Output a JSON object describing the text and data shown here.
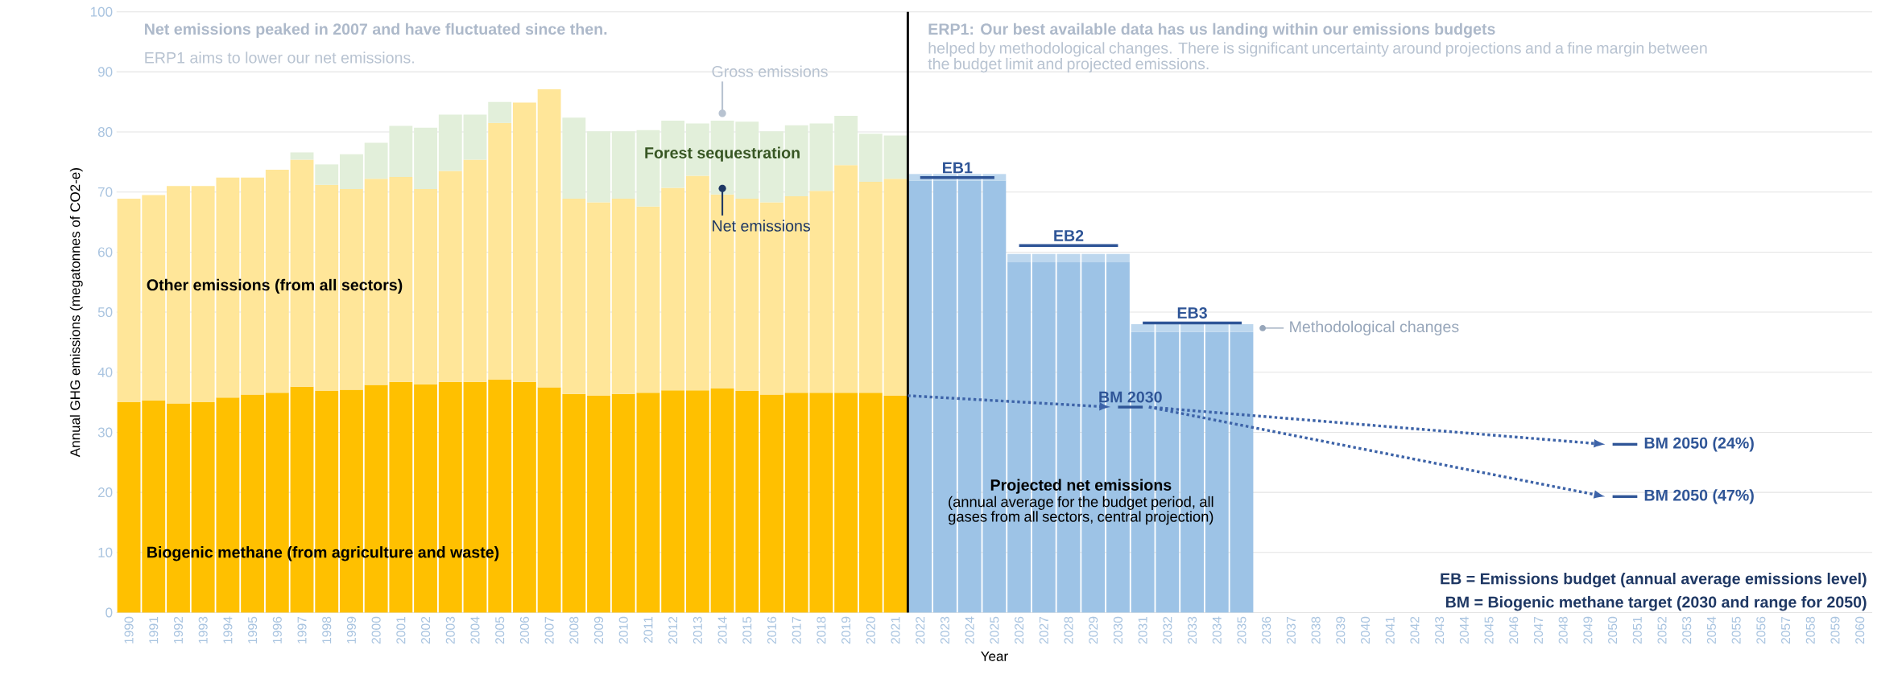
{
  "chart_data": {
    "type": "bar",
    "stacked": true,
    "grid": "y",
    "xlabel": "Year",
    "ylabel": "Annual GHG emissions (megatonnes of CO2-e)",
    "xlim": [
      1989.5,
      2060.5
    ],
    "ylim": [
      0,
      100
    ],
    "xticks": [
      1990,
      1991,
      1992,
      1993,
      1994,
      1995,
      1996,
      1997,
      1998,
      1999,
      2000,
      2001,
      2002,
      2003,
      2004,
      2005,
      2006,
      2007,
      2008,
      2009,
      2010,
      2011,
      2012,
      2013,
      2014,
      2015,
      2016,
      2017,
      2018,
      2019,
      2020,
      2021,
      2022,
      2023,
      2024,
      2025,
      2026,
      2027,
      2028,
      2029,
      2030,
      2031,
      2032,
      2033,
      2034,
      2035,
      2036,
      2037,
      2038,
      2039,
      2040,
      2041,
      2042,
      2043,
      2044,
      2045,
      2046,
      2047,
      2048,
      2049,
      2050,
      2051,
      2052,
      2053,
      2054,
      2055,
      2056,
      2057,
      2058,
      2059,
      2060
    ],
    "yticks": [
      0,
      10,
      20,
      30,
      40,
      50,
      60,
      70,
      80,
      90,
      100
    ],
    "x": [
      1990,
      1991,
      1992,
      1993,
      1994,
      1995,
      1996,
      1997,
      1998,
      1999,
      2000,
      2001,
      2002,
      2003,
      2004,
      2005,
      2006,
      2007,
      2008,
      2009,
      2010,
      2011,
      2012,
      2013,
      2014,
      2015,
      2016,
      2017,
      2018,
      2019,
      2020,
      2021,
      2022,
      2023,
      2024,
      2025,
      2026,
      2027,
      2028,
      2029,
      2030,
      2031,
      2032,
      2033,
      2034,
      2035
    ],
    "series": [
      {
        "name": "Biogenic methane (from agriculture and waste)",
        "color": "#ffc000",
        "values": [
          35.0,
          35.3,
          34.8,
          35.0,
          35.8,
          36.3,
          36.6,
          37.6,
          36.9,
          37.1,
          37.9,
          38.4,
          38.0,
          38.4,
          38.4,
          38.8,
          38.4,
          37.5,
          36.4,
          36.1,
          36.4,
          36.6,
          37.0,
          37.0,
          37.3,
          36.9,
          36.3,
          36.6,
          36.6,
          36.6,
          36.6,
          36.1,
          null,
          null,
          null,
          null,
          null,
          null,
          null,
          null,
          null,
          null,
          null,
          null,
          null,
          null
        ]
      },
      {
        "name": "Other emissions (from all sectors)",
        "color": "#ffe699",
        "values": [
          33.9,
          34.2,
          36.2,
          36.0,
          36.6,
          36.1,
          37.1,
          37.8,
          34.3,
          33.4,
          34.3,
          34.1,
          32.5,
          35.1,
          37.0,
          42.7,
          46.5,
          49.6,
          32.5,
          32.2,
          32.5,
          31.0,
          33.7,
          35.7,
          32.3,
          32.0,
          32.0,
          32.7,
          33.6,
          37.9,
          35.1,
          36.1,
          null,
          null,
          null,
          null,
          null,
          null,
          null,
          null,
          null,
          null,
          null,
          null,
          null,
          null
        ]
      },
      {
        "name": "Forest sequestration",
        "color": "#e2efda",
        "values": [
          null,
          null,
          null,
          null,
          null,
          null,
          null,
          1.2,
          3.4,
          5.8,
          6.0,
          8.5,
          10.2,
          9.4,
          7.5,
          3.5,
          null,
          null,
          13.5,
          11.8,
          11.2,
          12.7,
          11.2,
          8.7,
          12.3,
          12.8,
          11.8,
          11.8,
          11.2,
          8.2,
          8.0,
          7.2,
          null,
          null,
          null,
          null,
          null,
          null,
          null,
          null,
          null,
          null,
          null,
          null,
          null,
          null
        ]
      },
      {
        "name": "Projected net emissions",
        "color": "#9dc3e6",
        "values": [
          null,
          null,
          null,
          null,
          null,
          null,
          null,
          null,
          null,
          null,
          null,
          null,
          null,
          null,
          null,
          null,
          null,
          null,
          null,
          null,
          null,
          null,
          null,
          null,
          null,
          null,
          null,
          null,
          null,
          null,
          null,
          null,
          71.9,
          71.9,
          71.9,
          71.9,
          58.3,
          58.3,
          58.3,
          58.3,
          58.3,
          46.7,
          46.7,
          46.7,
          46.7,
          46.7
        ]
      },
      {
        "name": "Methodological changes",
        "color": "#bdd7ee",
        "values": [
          null,
          null,
          null,
          null,
          null,
          null,
          null,
          null,
          null,
          null,
          null,
          null,
          null,
          null,
          null,
          null,
          null,
          null,
          null,
          null,
          null,
          null,
          null,
          null,
          null,
          null,
          null,
          null,
          null,
          null,
          null,
          null,
          1.1,
          1.1,
          1.1,
          1.1,
          1.4,
          1.4,
          1.4,
          1.4,
          1.4,
          1.3,
          1.3,
          1.3,
          1.3,
          1.3
        ]
      },
      {
        "name": "EB1",
        "type": "line",
        "line_style": "solid",
        "color": "#2f5597",
        "x": [
          2022,
          2025
        ],
        "values": [
          72.4,
          72.4
        ]
      },
      {
        "name": "EB2",
        "type": "line",
        "line_style": "solid",
        "color": "#2f5597",
        "x": [
          2026,
          2030
        ],
        "values": [
          61.1,
          61.1
        ]
      },
      {
        "name": "EB3",
        "type": "line",
        "line_style": "solid",
        "color": "#2f5597",
        "x": [
          2031,
          2035
        ],
        "values": [
          48.2,
          48.2
        ]
      },
      {
        "name": "BM 2030",
        "type": "line",
        "line_style": "solid",
        "color": "#2f5597",
        "x": [
          2030,
          2031
        ],
        "values": [
          34.2,
          34.2
        ]
      },
      {
        "name": "BM 2050 (24%)",
        "type": "line",
        "line_style": "solid",
        "color": "#2f5597",
        "x": [
          2050,
          2051
        ],
        "values": [
          28.0,
          28.0
        ]
      },
      {
        "name": "BM 2050 (47%)",
        "type": "line",
        "line_style": "solid",
        "color": "#2f5597",
        "x": [
          2050,
          2051
        ],
        "values": [
          19.3,
          19.3
        ]
      }
    ],
    "ref_lines": [
      {
        "axis": "x",
        "value": 2021.5,
        "color": "#000000"
      }
    ],
    "annotations": [
      "Net emissions peaked in 2007 and have fluctuated since then.",
      "ERP1 aims to lower our net emissions.",
      "ERP1: Our best available data has us landing within our emissions budgets",
      "helped by methodological changes. There is significant uncertainty around projections and a fine margin between the budget limit and projected emissions.",
      {
        "text": "Gross emissions",
        "x": 2014,
        "y": 81.9
      },
      {
        "text": "Net emissions",
        "x": 2014,
        "y": 69.6
      },
      "(annual average for the budget period, all gases from all sectors, central projection)",
      "EB = Emissions budget (annual average emissions level)",
      "BM = Biogenic methane target (2030 and range for 2050)"
    ]
  }
}
